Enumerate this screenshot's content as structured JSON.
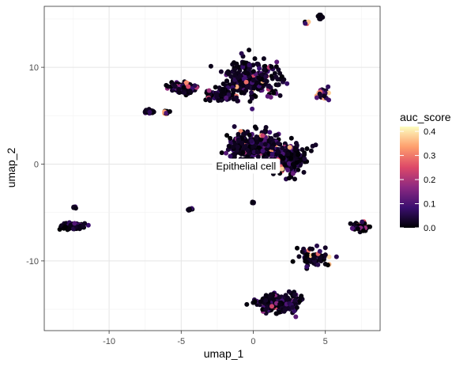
{
  "chart_data": {
    "type": "scatter",
    "xlabel": "umap_1",
    "ylabel": "umap_2",
    "xlim": [
      -14.5,
      8.8
    ],
    "ylim": [
      -17.2,
      16.3
    ],
    "x_ticks": [
      -10,
      -5,
      0,
      5
    ],
    "x_tick_labels": [
      "-10",
      "-5",
      "0",
      "5"
    ],
    "y_ticks": [
      -10,
      0,
      10
    ],
    "y_tick_labels": [
      "-10",
      "0",
      "10"
    ],
    "grid": true,
    "annotation": {
      "text": "Epithelial cell",
      "x": -0.5,
      "y": -0.2
    },
    "legend": {
      "title": "auc_score",
      "placement": "right",
      "min": 0.0,
      "max": 0.42,
      "breaks": [
        0.0,
        0.1,
        0.2,
        0.3,
        0.4
      ],
      "break_labels": [
        "0.0",
        "0.1",
        "0.2",
        "0.3",
        "0.4"
      ],
      "colors": [
        "#000004",
        "#3b0f70",
        "#8c2981",
        "#de4968",
        "#fe9f6d",
        "#fcfdbf"
      ]
    },
    "clusters": [
      {
        "name": "top-center",
        "cx": -0.2,
        "cy": 8.8,
        "sx": 1.6,
        "sy": 1.6,
        "n": 300,
        "seed": 1,
        "hot": 0.05
      },
      {
        "name": "center-left",
        "cx": 0.1,
        "cy": 1.9,
        "sx": 1.5,
        "sy": 1.2,
        "n": 320,
        "seed": 2,
        "hot": 0.06
      },
      {
        "name": "center-right",
        "cx": 2.5,
        "cy": 0.6,
        "sx": 1.0,
        "sy": 1.2,
        "n": 280,
        "seed": 3,
        "hot": 0.08
      },
      {
        "name": "upper-left",
        "cx": -4.9,
        "cy": 7.9,
        "sx": 0.7,
        "sy": 0.5,
        "n": 120,
        "seed": 4,
        "hot": 0.12
      },
      {
        "name": "arm-left",
        "cx": -2.5,
        "cy": 7.2,
        "sx": 0.8,
        "sy": 0.5,
        "n": 80,
        "seed": 5,
        "hot": 0.06
      },
      {
        "name": "left-small",
        "cx": -7.3,
        "cy": 5.4,
        "sx": 0.35,
        "sy": 0.15,
        "n": 25,
        "seed": 6,
        "hot": 0.0
      },
      {
        "name": "left-small-2",
        "cx": -6.0,
        "cy": 5.3,
        "sx": 0.2,
        "sy": 0.15,
        "n": 10,
        "seed": 7,
        "hot": 0.3
      },
      {
        "name": "right-arm",
        "cx": 4.8,
        "cy": 7.2,
        "sx": 0.4,
        "sy": 0.5,
        "n": 35,
        "seed": 8,
        "hot": 0.35
      },
      {
        "name": "top-right",
        "cx": 4.7,
        "cy": 15.2,
        "sx": 0.15,
        "sy": 0.2,
        "n": 12,
        "seed": 9,
        "hot": 0.0
      },
      {
        "name": "top-right-2",
        "cx": 3.7,
        "cy": 14.6,
        "sx": 0.15,
        "sy": 0.1,
        "n": 6,
        "seed": 10,
        "hot": 0.2
      },
      {
        "name": "far-left",
        "cx": -12.4,
        "cy": -6.4,
        "sx": 0.9,
        "sy": 0.25,
        "n": 90,
        "seed": 11,
        "hot": 0.0
      },
      {
        "name": "far-left-small",
        "cx": -12.4,
        "cy": -4.5,
        "sx": 0.08,
        "sy": 0.15,
        "n": 5,
        "seed": 12,
        "hot": 0.0
      },
      {
        "name": "mid-small",
        "cx": -4.4,
        "cy": -4.7,
        "sx": 0.2,
        "sy": 0.12,
        "n": 6,
        "seed": 13,
        "hot": 0.0
      },
      {
        "name": "center-small",
        "cx": 0.0,
        "cy": -4.0,
        "sx": 0.08,
        "sy": 0.15,
        "n": 5,
        "seed": 14,
        "hot": 0.0
      },
      {
        "name": "right-cluster",
        "cx": 7.4,
        "cy": -6.5,
        "sx": 0.45,
        "sy": 0.35,
        "n": 60,
        "seed": 15,
        "hot": 0.1
      },
      {
        "name": "bottom-arm",
        "cx": 4.1,
        "cy": -9.6,
        "sx": 0.9,
        "sy": 0.9,
        "n": 70,
        "seed": 16,
        "hot": 0.12
      },
      {
        "name": "bottom-cluster",
        "cx": 1.8,
        "cy": -14.3,
        "sx": 1.2,
        "sy": 0.8,
        "n": 260,
        "seed": 17,
        "hot": 0.07
      }
    ]
  }
}
